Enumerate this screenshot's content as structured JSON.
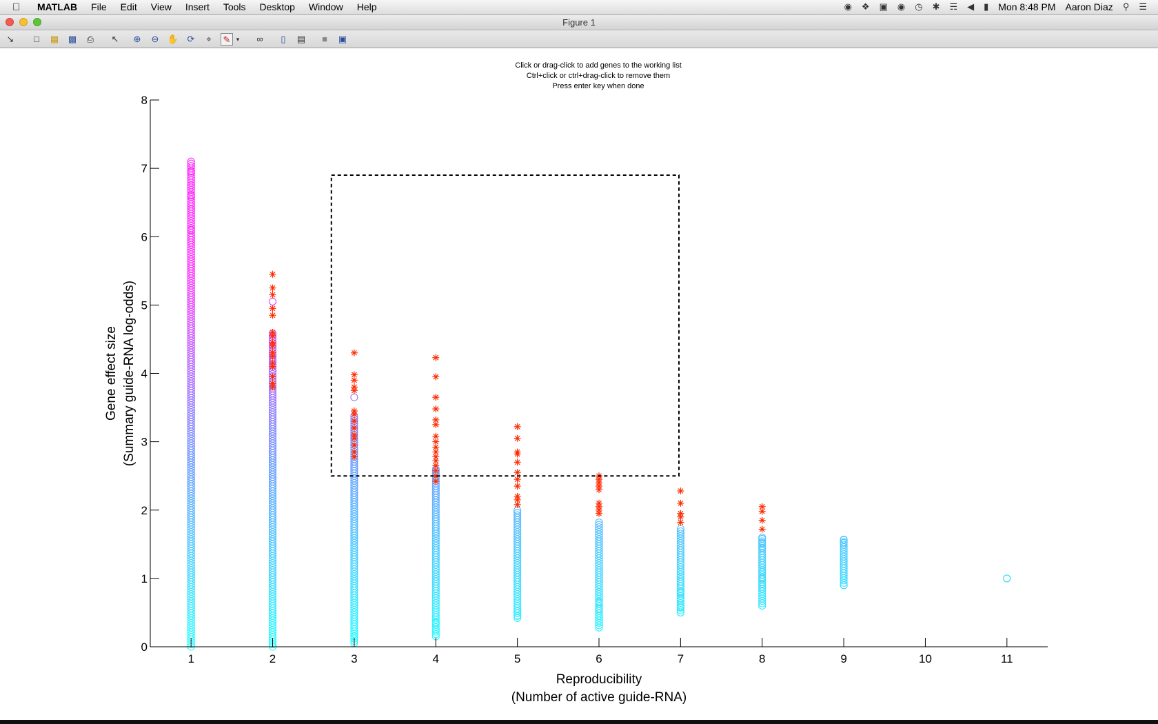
{
  "menubar": {
    "apple_icon": "apple-icon",
    "app_name": "MATLAB",
    "menus": [
      "File",
      "Edit",
      "View",
      "Insert",
      "Tools",
      "Desktop",
      "Window",
      "Help"
    ],
    "clock": "Mon 8:48 PM",
    "user": "Aaron Diaz"
  },
  "window": {
    "title": "Figure 1"
  },
  "toolbar": {
    "icons": [
      "dock-arrow-icon",
      "new-figure-icon",
      "open-file-icon",
      "save-icon",
      "print-icon",
      "pointer-icon",
      "zoom-in-icon",
      "zoom-out-icon",
      "pan-hand-icon",
      "rotate-3d-icon",
      "data-cursor-icon",
      "brush-icon",
      "brush-dropdown-icon",
      "link-plot-icon",
      "colorbar-icon",
      "legend-icon",
      "hide-plot-tools-icon",
      "show-plot-tools-icon"
    ]
  },
  "instructions": [
    "Click or drag-click to add genes to the working list",
    "Ctrl+click or ctrl+drag-click to remove them",
    "Press enter key when done"
  ],
  "colors": {
    "low": "#29ffff",
    "mid": "#6f9bff",
    "high": "#ff33ff",
    "selected": "#ff2a00",
    "axis": "#000000"
  },
  "chart_data": {
    "type": "scatter",
    "xlabel": [
      "Reproducibility",
      "(Number of active guide-RNA)"
    ],
    "ylabel": [
      "Gene effect size",
      "(Summary guide-RNA log-odds)"
    ],
    "xlim": [
      0.5,
      11.5
    ],
    "ylim": [
      0,
      8
    ],
    "xticks": [
      1,
      2,
      3,
      4,
      5,
      6,
      7,
      8,
      9,
      10,
      11
    ],
    "yticks": [
      0,
      1,
      2,
      3,
      4,
      5,
      6,
      7,
      8
    ],
    "grid": false,
    "selection_box": {
      "x": [
        2.72,
        6.98
      ],
      "y": [
        2.5,
        6.9
      ]
    },
    "columns": [
      {
        "x": 1,
        "min": 0,
        "max": 7.1,
        "sparse": [
          7.1,
          6.95,
          6.75,
          6.6,
          6.4,
          6.3,
          6.1,
          5.95
        ]
      },
      {
        "x": 2,
        "min": 0,
        "max": 4.6,
        "sparse": [
          5.05
        ]
      },
      {
        "x": 3,
        "min": 0.05,
        "max": 3.4,
        "sparse": [
          3.65,
          0.15
        ]
      },
      {
        "x": 4,
        "min": 0.15,
        "max": 2.6,
        "sparse": [
          0.25,
          0.35
        ]
      },
      {
        "x": 5,
        "min": 0.42,
        "max": 2.0,
        "sparse": [
          0.45,
          0.52
        ]
      },
      {
        "x": 6,
        "min": 0.28,
        "max": 1.85,
        "sparse": [
          0.28,
          0.35,
          0.45,
          0.55,
          0.65,
          0.8
        ]
      },
      {
        "x": 7,
        "min": 0.5,
        "max": 1.75,
        "sparse": [
          0.5,
          0.58,
          0.7,
          0.8,
          0.95,
          1.1
        ]
      },
      {
        "x": 8,
        "min": 0.6,
        "max": 1.6,
        "sparse": [
          0.6,
          0.85,
          0.92,
          1.0,
          1.1,
          1.2,
          1.45,
          1.52,
          1.6
        ]
      },
      {
        "x": 9,
        "min": 0.9,
        "max": 1.57,
        "sparse": [
          0.9,
          1.25,
          1.52,
          1.57
        ]
      },
      {
        "x": 10,
        "min": null,
        "max": null,
        "sparse": []
      },
      {
        "x": 11,
        "min": 1.0,
        "max": 1.0,
        "sparse": [
          1.0
        ]
      }
    ],
    "red_stars": [
      {
        "x": 2,
        "values": [
          5.45,
          5.25,
          5.15,
          4.95,
          4.85,
          4.6,
          4.55,
          4.45,
          4.4,
          4.3,
          4.25,
          4.15,
          4.1,
          3.95,
          3.85,
          3.8
        ]
      },
      {
        "x": 3,
        "values": [
          4.3,
          3.98,
          3.9,
          3.8,
          3.75,
          3.45,
          3.4,
          3.3,
          3.2,
          3.1,
          3.05,
          2.95,
          2.85,
          2.78
        ]
      },
      {
        "x": 4,
        "values": [
          4.23,
          3.95,
          3.65,
          3.48,
          3.32,
          3.25,
          3.08,
          3.0,
          2.92,
          2.85,
          2.78,
          2.72,
          2.65,
          2.58,
          2.5,
          2.42
        ]
      },
      {
        "x": 5,
        "values": [
          3.22,
          3.05,
          2.85,
          2.82,
          2.7,
          2.55,
          2.45,
          2.35,
          2.2,
          2.15,
          2.08
        ]
      },
      {
        "x": 6,
        "values": [
          2.5,
          2.45,
          2.4,
          2.35,
          2.3,
          2.1,
          2.05,
          2.0,
          1.95
        ]
      },
      {
        "x": 7,
        "values": [
          2.28,
          2.1,
          1.95,
          1.9,
          1.82
        ]
      },
      {
        "x": 8,
        "values": [
          2.05,
          1.98,
          1.85,
          1.72
        ]
      }
    ]
  }
}
